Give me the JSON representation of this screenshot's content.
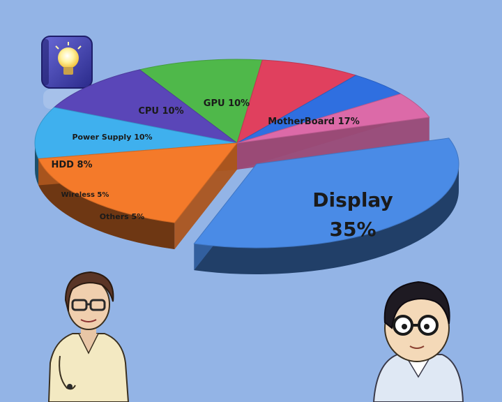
{
  "chart_data": {
    "type": "pie",
    "style": "3d-exploded",
    "slices": [
      {
        "label": "Display",
        "value": 35,
        "display": "35%",
        "color": "#4a8be6"
      },
      {
        "label": "MotherBoard",
        "value": 17,
        "display": "17%",
        "color": "#f47a2a"
      },
      {
        "label": "GPU",
        "value": 10,
        "display": "10%",
        "color": "#3fb0ee"
      },
      {
        "label": "CPU",
        "value": 10,
        "display": "10%",
        "color": "#5a46b8"
      },
      {
        "label": "Power Supply",
        "value": 10,
        "display": "10%",
        "color": "#4fb84a"
      },
      {
        "label": "HDD",
        "value": 8,
        "display": "8%",
        "color": "#e0405e"
      },
      {
        "label": "Wireless",
        "value": 5,
        "display": "5%",
        "color": "#2f6fe0"
      },
      {
        "label": "Others",
        "value": 5,
        "display": "5%",
        "color": "#dc6aa8"
      }
    ]
  },
  "decor": {
    "icon": "lightbulb-icon",
    "characters": [
      "woman-character",
      "man-character"
    ]
  }
}
